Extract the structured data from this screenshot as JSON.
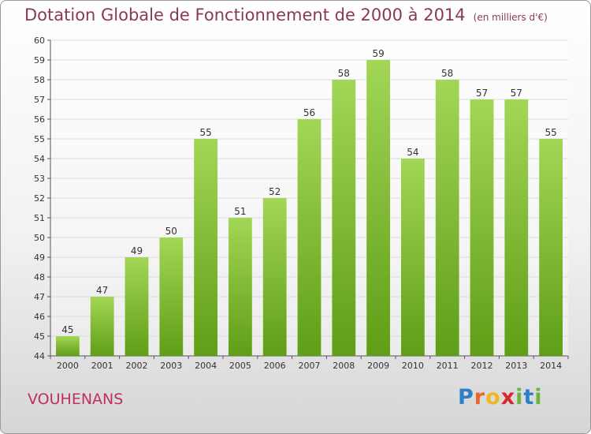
{
  "chart_data": {
    "type": "bar",
    "title": "Dotation Globale de Fonctionnement de 2000 à 2014",
    "subtitle": "(en milliers d'€)",
    "categories": [
      "2000",
      "2001",
      "2002",
      "2003",
      "2004",
      "2005",
      "2006",
      "2007",
      "2008",
      "2009",
      "2010",
      "2011",
      "2012",
      "2013",
      "2014"
    ],
    "values": [
      45,
      47,
      49,
      50,
      55,
      51,
      52,
      56,
      58,
      59,
      54,
      58,
      57,
      57,
      55
    ],
    "ylim": [
      44,
      60
    ],
    "yticks": [
      44,
      45,
      46,
      47,
      48,
      49,
      50,
      51,
      52,
      53,
      54,
      55,
      56,
      57,
      58,
      59,
      60
    ],
    "grid": true,
    "bar_color": "#7dbb2f",
    "xlabel": "",
    "ylabel": ""
  },
  "footer": {
    "place_name": "VOUHENANS",
    "logo_letters": [
      "P",
      "r",
      "o",
      "x",
      "i",
      "t",
      "i"
    ],
    "logo_colors": [
      "#2f7fc8",
      "#e8662a",
      "#f0b81e",
      "#d8262c",
      "#6cb33f",
      "#2f7fc8",
      "#6cb33f"
    ]
  }
}
